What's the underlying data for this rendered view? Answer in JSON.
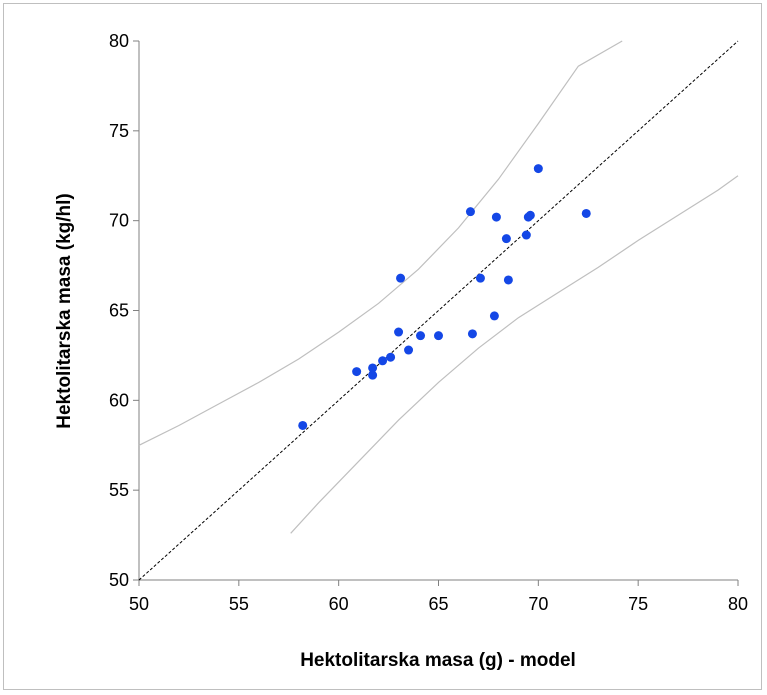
{
  "chart_data": {
    "type": "scatter",
    "title": "",
    "xlabel": "Hektolitarska masa (g) - model",
    "ylabel": "Hektolitarska masa (kg/hl)",
    "xlim": [
      50,
      80
    ],
    "ylim": [
      50,
      80
    ],
    "x_ticks": [
      50,
      55,
      60,
      65,
      70,
      75,
      80
    ],
    "y_ticks": [
      50,
      55,
      60,
      65,
      70,
      75,
      80
    ],
    "x_tick_labels": [
      "50",
      "55",
      "60",
      "65",
      "70",
      "75",
      "80"
    ],
    "y_tick_labels": [
      "50",
      "55",
      "60",
      "65",
      "70",
      "75",
      "80"
    ],
    "grid": false,
    "legend": "none",
    "points": [
      {
        "x": 58.2,
        "y": 58.6
      },
      {
        "x": 60.9,
        "y": 61.6
      },
      {
        "x": 61.7,
        "y": 61.8
      },
      {
        "x": 61.7,
        "y": 61.4
      },
      {
        "x": 62.2,
        "y": 62.2
      },
      {
        "x": 62.6,
        "y": 62.4
      },
      {
        "x": 63.0,
        "y": 63.8
      },
      {
        "x": 63.1,
        "y": 66.8
      },
      {
        "x": 63.5,
        "y": 62.8
      },
      {
        "x": 64.1,
        "y": 63.6
      },
      {
        "x": 65.0,
        "y": 63.6
      },
      {
        "x": 66.6,
        "y": 70.5
      },
      {
        "x": 66.7,
        "y": 63.7
      },
      {
        "x": 67.1,
        "y": 66.8
      },
      {
        "x": 67.8,
        "y": 64.7
      },
      {
        "x": 67.9,
        "y": 70.2
      },
      {
        "x": 68.4,
        "y": 69.0
      },
      {
        "x": 68.5,
        "y": 66.7
      },
      {
        "x": 69.4,
        "y": 69.2
      },
      {
        "x": 69.5,
        "y": 70.2
      },
      {
        "x": 69.6,
        "y": 70.3
      },
      {
        "x": 70.0,
        "y": 72.9
      },
      {
        "x": 72.4,
        "y": 70.4
      }
    ],
    "reference_line": {
      "style": "dashed",
      "from": [
        50,
        50
      ],
      "to": [
        80,
        80
      ]
    },
    "upper_band": [
      {
        "x": 50,
        "y": 57.5
      },
      {
        "x": 52,
        "y": 58.6
      },
      {
        "x": 54,
        "y": 59.8
      },
      {
        "x": 56,
        "y": 61.0
      },
      {
        "x": 58,
        "y": 62.3
      },
      {
        "x": 60,
        "y": 63.8
      },
      {
        "x": 62,
        "y": 65.4
      },
      {
        "x": 64,
        "y": 67.3
      },
      {
        "x": 66,
        "y": 69.6
      },
      {
        "x": 68,
        "y": 72.3
      },
      {
        "x": 70,
        "y": 75.4
      },
      {
        "x": 72,
        "y": 78.6
      },
      {
        "x": 74.2,
        "y": 80.0
      }
    ],
    "lower_band": [
      {
        "x": 57.6,
        "y": 52.6
      },
      {
        "x": 59,
        "y": 54.3
      },
      {
        "x": 61,
        "y": 56.6
      },
      {
        "x": 63,
        "y": 58.9
      },
      {
        "x": 65,
        "y": 61.0
      },
      {
        "x": 67,
        "y": 62.9
      },
      {
        "x": 69,
        "y": 64.6
      },
      {
        "x": 71,
        "y": 66.0
      },
      {
        "x": 73,
        "y": 67.4
      },
      {
        "x": 75,
        "y": 68.9
      },
      {
        "x": 77,
        "y": 70.3
      },
      {
        "x": 79,
        "y": 71.7
      },
      {
        "x": 80,
        "y": 72.5
      }
    ],
    "colors": {
      "points": "#1447e6",
      "band": "#bfbfbf",
      "reference": "#000000",
      "axis": "#808080"
    }
  }
}
